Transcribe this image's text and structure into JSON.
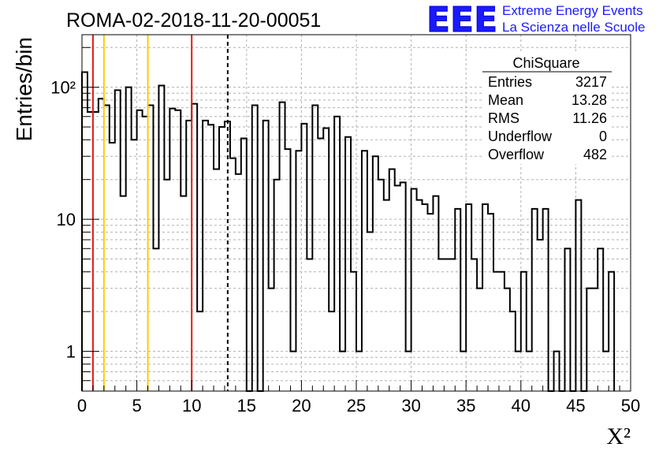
{
  "header": {
    "run_title": "ROMA-02-2018-11-20-00051",
    "logo_text": "EEE",
    "brand_line1": "Extreme Energy Events",
    "brand_line2": "La Scienza nelle Scuole"
  },
  "stats_box": {
    "title": "ChiSquare",
    "rows": [
      {
        "label": "Entries",
        "value": "3217"
      },
      {
        "label": "Mean",
        "value": "13.28"
      },
      {
        "label": "RMS",
        "value": "11.26"
      },
      {
        "label": "Underflow",
        "value": "0"
      },
      {
        "label": "Overflow",
        "value": "482"
      }
    ]
  },
  "chart_data": {
    "type": "histogram",
    "xlabel": "X²",
    "ylabel": "Entries/bin",
    "xlim": [
      0,
      50
    ],
    "ylim": [
      0.5,
      250
    ],
    "yscale": "log",
    "grid": true,
    "bin_width": 0.5,
    "x_tick_labels": [
      "0",
      "5",
      "10",
      "15",
      "20",
      "25",
      "30",
      "35",
      "40",
      "45",
      "50"
    ],
    "y_tick_labels": [
      "1",
      "10",
      "10²"
    ],
    "values": [
      130,
      65,
      65,
      82,
      73,
      38,
      95,
      15,
      100,
      40,
      67,
      60,
      73,
      6,
      103,
      20,
      69,
      67,
      15,
      56,
      75,
      2,
      56,
      52,
      24,
      50,
      55,
      29,
      22,
      41,
      0,
      73,
      0,
      56,
      3,
      20,
      77,
      34,
      1,
      33,
      53,
      5,
      73,
      41,
      49,
      2,
      60,
      1,
      42,
      4,
      1,
      33,
      8,
      30,
      20,
      14,
      24,
      18,
      19,
      1,
      17,
      14,
      13,
      11,
      15,
      5,
      5,
      5,
      12,
      1,
      13,
      5,
      3,
      13,
      11,
      4,
      4,
      3,
      2,
      1,
      4,
      1,
      12,
      7,
      12,
      0,
      1,
      0,
      6,
      0,
      14,
      0,
      3,
      3,
      6,
      1,
      4
    ]
  },
  "reference_lines": {
    "red_x": [
      1,
      10
    ],
    "orange_x": [
      2,
      6
    ],
    "dashed_black_x": [
      13.28
    ],
    "red_color": "#e01b1b",
    "orange_color": "#ffcc00",
    "dashed_color": "#000000"
  }
}
